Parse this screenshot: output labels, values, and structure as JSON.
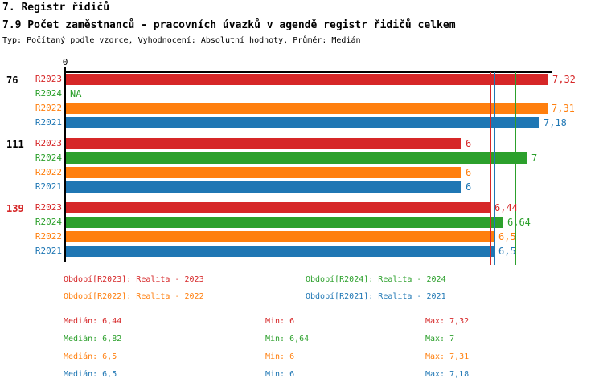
{
  "header": {
    "title": "7. Registr řidičů",
    "subtitle": "7.9 Počet zaměstnanců - pracovních úvazků v agendě registr řidičů celkem",
    "meta": "Typ: Počítaný podle vzorce, Vyhodnocení: Absolutní hodnoty, Průměr: Medián"
  },
  "colors": {
    "R2023": "#d62728",
    "R2024": "#2ca02c",
    "R2022": "#ff7f0e",
    "R2021": "#1f77b4",
    "axis": "#000000",
    "group_label": "#000000",
    "group_label_highlight": "#d62728"
  },
  "chart_data": {
    "type": "bar",
    "orientation": "horizontal",
    "axis_origin_label": "0",
    "xlim": [
      0,
      7.37
    ],
    "grid": false,
    "series_order": [
      "R2023",
      "R2024",
      "R2022",
      "R2021"
    ],
    "groups": [
      {
        "label": "76",
        "highlight": false,
        "values": {
          "R2023": 7.32,
          "R2024": null,
          "R2022": 7.31,
          "R2021": 7.18
        },
        "displays": {
          "R2023": "7,32",
          "R2024": "NA",
          "R2022": "7,31",
          "R2021": "7,18"
        }
      },
      {
        "label": "111",
        "highlight": false,
        "values": {
          "R2023": 6,
          "R2024": 7,
          "R2022": 6,
          "R2021": 6
        },
        "displays": {
          "R2023": "6",
          "R2024": "7",
          "R2022": "6",
          "R2021": "6"
        }
      },
      {
        "label": "139",
        "highlight": true,
        "values": {
          "R2023": 6.44,
          "R2024": 6.64,
          "R2022": 6.5,
          "R2021": 6.5
        },
        "displays": {
          "R2023": "6,44",
          "R2024": "6,64",
          "R2022": "6,5",
          "R2021": "6,5"
        }
      }
    ],
    "median_lines": [
      {
        "series": "R2022",
        "value": 6.5
      },
      {
        "series": "R2023",
        "value": 6.44
      },
      {
        "series": "R2021",
        "value": 6.5
      },
      {
        "series": "R2024",
        "value": 6.82
      }
    ]
  },
  "legend": [
    {
      "series": "R2023",
      "label": "Období[R2023]: Realita - 2023"
    },
    {
      "series": "R2024",
      "label": "Období[R2024]: Realita - 2024"
    },
    {
      "series": "R2022",
      "label": "Období[R2022]: Realita - 2022"
    },
    {
      "series": "R2021",
      "label": "Období[R2021]: Realita - 2021"
    }
  ],
  "stats": [
    {
      "series": "R2023",
      "median": "Medián: 6,44",
      "min": "Min: 6",
      "max": "Max: 7,32"
    },
    {
      "series": "R2024",
      "median": "Medián: 6,82",
      "min": "Min: 6,64",
      "max": "Max: 7"
    },
    {
      "series": "R2022",
      "median": "Medián: 6,5",
      "min": "Min: 6",
      "max": "Max: 7,31"
    },
    {
      "series": "R2021",
      "median": "Medián: 6,5",
      "min": "Min: 6",
      "max": "Max: 7,18"
    }
  ]
}
